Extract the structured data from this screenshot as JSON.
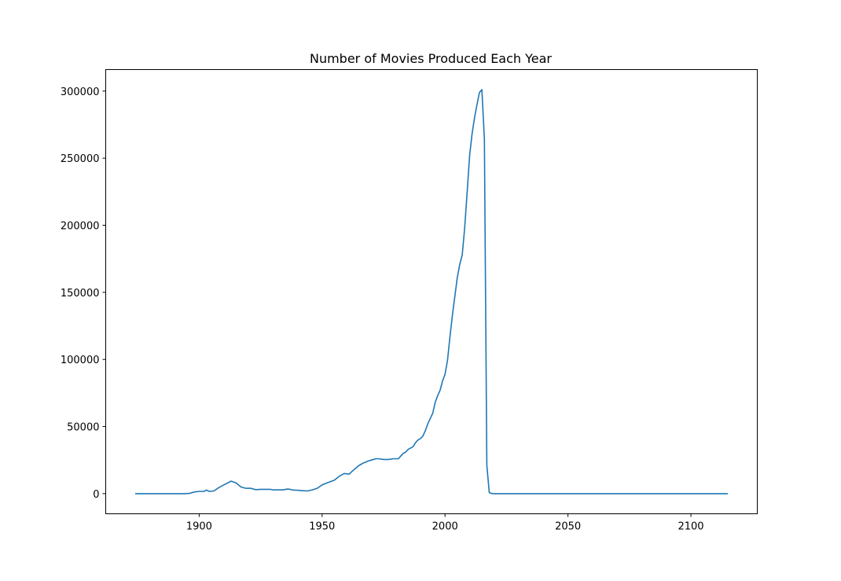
{
  "chart_data": {
    "type": "line",
    "title": "Number of Movies Produced Each Year",
    "xlabel": "",
    "ylabel": "",
    "xlim": [
      1862,
      2127
    ],
    "ylim": [
      -15000,
      316000
    ],
    "xticks": [
      1900,
      1950,
      2000,
      2050,
      2100
    ],
    "yticks": [
      0,
      50000,
      100000,
      150000,
      200000,
      250000,
      300000
    ],
    "grid": false,
    "legend": "none",
    "line_color": "#1f77b4",
    "series": [
      {
        "x": [
          1874,
          1880,
          1885,
          1890,
          1894,
          1896,
          1898,
          1900,
          1902,
          1903,
          1904,
          1906,
          1908,
          1910,
          1913,
          1915,
          1917,
          1919,
          1921,
          1923,
          1925,
          1929,
          1930,
          1932,
          1934,
          1936,
          1937,
          1938,
          1940,
          1942,
          1944,
          1946,
          1948,
          1950,
          1952,
          1955,
          1957,
          1959,
          1961,
          1963,
          1965,
          1967,
          1969,
          1970,
          1972,
          1973,
          1975,
          1977,
          1979,
          1981,
          1982,
          1983,
          1984,
          1985,
          1986,
          1987,
          1988,
          1989,
          1990,
          1991,
          1992,
          1993,
          1994,
          1995,
          1996,
          1997,
          1998,
          1999,
          2000,
          2001,
          2002,
          2003,
          2004,
          2005,
          2006,
          2007,
          2008,
          2009,
          2010,
          2011,
          2012,
          2013,
          2014,
          2015,
          2016,
          2017,
          2018,
          2019,
          2020,
          2021,
          2022,
          2025,
          2050,
          2100,
          2115
        ],
        "y": [
          0,
          0,
          0,
          0,
          0,
          200,
          1200,
          1700,
          1700,
          2700,
          1700,
          2000,
          4500,
          6500,
          9300,
          8000,
          5000,
          4000,
          4000,
          3000,
          3200,
          3200,
          2800,
          2800,
          2800,
          3400,
          3200,
          2700,
          2500,
          2200,
          2000,
          2800,
          4000,
          6500,
          8000,
          10000,
          13000,
          15000,
          14500,
          18000,
          21000,
          23000,
          24500,
          25000,
          26000,
          26000,
          25500,
          25500,
          26000,
          26000,
          28000,
          30000,
          31000,
          33000,
          34000,
          35000,
          38000,
          40000,
          41000,
          43000,
          47000,
          52000,
          56000,
          60000,
          68000,
          73000,
          77000,
          84000,
          89000,
          99000,
          117000,
          133000,
          147000,
          161000,
          171000,
          178000,
          198000,
          225000,
          252000,
          268000,
          280000,
          290000,
          299000,
          301000,
          264000,
          21000,
          800,
          100,
          0,
          0,
          0,
          0,
          0,
          0,
          0
        ]
      }
    ]
  }
}
